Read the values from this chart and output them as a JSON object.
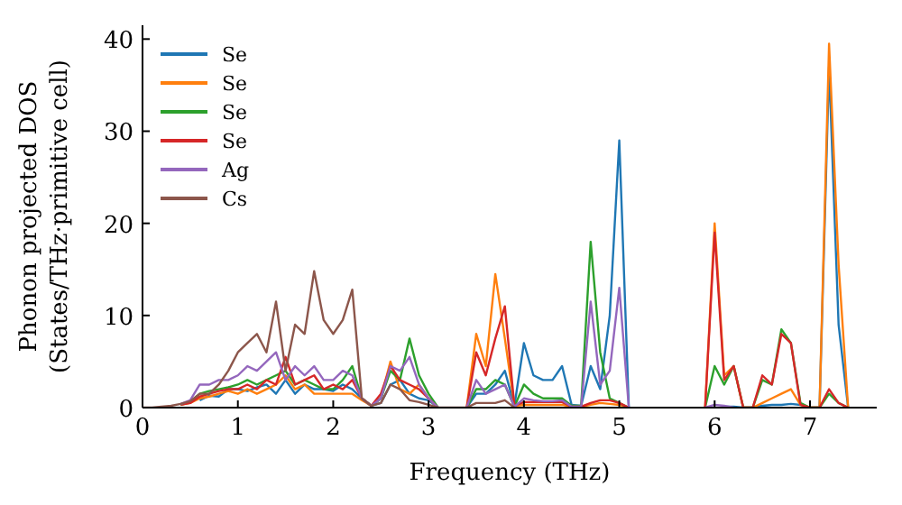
{
  "chart_data": {
    "type": "line",
    "xlabel": "Frequency (THz)",
    "ylabel": "Phonon projected DOS\n(States/THz·primitive cell)",
    "xlim": [
      0,
      7.7
    ],
    "xticks": [
      0,
      1,
      2,
      3,
      4,
      5,
      6,
      7
    ],
    "ylim": [
      0,
      41.5
    ],
    "yticks": [
      0,
      10,
      20,
      30,
      40
    ],
    "legend": "top left",
    "marker": "none",
    "line_style": "solid",
    "x": [
      0,
      0.1,
      0.2,
      0.3,
      0.4,
      0.5,
      0.6,
      0.7,
      0.8,
      0.9,
      1.0,
      1.1,
      1.2,
      1.3,
      1.4,
      1.5,
      1.6,
      1.7,
      1.8,
      1.9,
      2.0,
      2.1,
      2.2,
      2.3,
      2.4,
      2.5,
      2.6,
      2.7,
      2.8,
      2.9,
      3.0,
      3.1,
      3.2,
      3.3,
      3.4,
      3.5,
      3.6,
      3.7,
      3.8,
      3.9,
      4.0,
      4.1,
      4.2,
      4.3,
      4.4,
      4.5,
      4.6,
      4.7,
      4.8,
      4.9,
      5.0,
      5.1,
      5.2,
      5.3,
      5.4,
      5.5,
      5.6,
      5.7,
      5.8,
      5.9,
      6.0,
      6.1,
      6.2,
      6.3,
      6.4,
      6.5,
      6.6,
      6.7,
      6.8,
      6.9,
      7.0,
      7.1,
      7.2,
      7.3,
      7.4
    ],
    "series": [
      {
        "name": "Se",
        "color": "#1f77b4",
        "values": [
          null,
          null,
          null,
          null,
          null,
          null,
          0.8,
          1.3,
          1.2,
          2.0,
          2.0,
          1.8,
          2.2,
          2.5,
          1.5,
          3.0,
          1.5,
          2.5,
          2.0,
          2.0,
          1.8,
          2.5,
          2.0,
          1.0,
          0.2,
          0.5,
          2.5,
          3.0,
          1.5,
          1.0,
          0.8,
          0,
          null,
          null,
          0,
          1.5,
          1.5,
          2.5,
          4.0,
          0.2,
          7.0,
          3.5,
          3.0,
          3.0,
          4.5,
          0.3,
          0.2,
          4.5,
          2.0,
          10,
          29,
          0,
          null,
          null,
          null,
          null,
          null,
          null,
          null,
          null,
          null,
          0.1,
          0.1,
          0,
          0,
          0.2,
          0.3,
          0.3,
          0.4,
          0.3,
          0,
          0,
          37,
          9,
          0
        ]
      },
      {
        "name": "Se",
        "color": "#ff7f0e",
        "values": [
          null,
          null,
          null,
          null,
          0.3,
          0.5,
          1.0,
          1.2,
          1.5,
          1.8,
          1.5,
          2.0,
          1.5,
          2.0,
          2.5,
          3.5,
          2.0,
          2.5,
          1.5,
          1.5,
          1.5,
          1.5,
          1.5,
          0.8,
          0.2,
          1.0,
          5.0,
          2.0,
          1.5,
          2.5,
          1.0,
          0,
          null,
          null,
          0,
          8.0,
          4.5,
          14.5,
          7.5,
          0.2,
          0.3,
          0.3,
          0.3,
          0.3,
          0.3,
          0.1,
          0.1,
          0.3,
          0.5,
          0.4,
          0.3,
          0,
          null,
          null,
          null,
          null,
          null,
          null,
          null,
          0,
          20,
          3.5,
          4.5,
          0,
          0,
          0.5,
          1.0,
          1.5,
          2.0,
          0.3,
          0,
          0,
          39.5,
          15.5,
          0
        ]
      },
      {
        "name": "Se",
        "color": "#2ca02c",
        "values": [
          null,
          null,
          null,
          null,
          0.3,
          0.6,
          1.5,
          1.8,
          2.0,
          2.2,
          2.5,
          3.0,
          2.5,
          3.0,
          3.5,
          4.0,
          2.5,
          3.0,
          2.5,
          2.0,
          2.0,
          3.0,
          4.5,
          1.0,
          0.2,
          1.0,
          4.0,
          3.0,
          7.5,
          3.5,
          1.5,
          0,
          null,
          null,
          0,
          2.0,
          2.0,
          3.0,
          2.5,
          0.1,
          2.5,
          1.5,
          1.0,
          1.0,
          1.0,
          0.2,
          0.2,
          18,
          6,
          1,
          0.5,
          0,
          null,
          null,
          null,
          null,
          null,
          null,
          null,
          0,
          4.5,
          2.5,
          4.5,
          0,
          0,
          3.0,
          2.5,
          8.5,
          7.0,
          0.5,
          0,
          0,
          1.5,
          0.5,
          0
        ]
      },
      {
        "name": "Se",
        "color": "#d62728",
        "values": [
          null,
          null,
          null,
          null,
          0.3,
          0.5,
          1.2,
          1.5,
          1.8,
          2.0,
          2.0,
          2.5,
          2.0,
          3.0,
          2.5,
          5.5,
          2.5,
          3.0,
          3.5,
          2.0,
          2.5,
          2.0,
          3.0,
          1.0,
          0.2,
          1.5,
          4.5,
          3.0,
          2.5,
          2.0,
          1.0,
          0,
          null,
          null,
          0,
          6.0,
          3.5,
          7.5,
          11,
          0.2,
          0.6,
          0.6,
          0.6,
          0.6,
          0.6,
          0.1,
          0.1,
          0.5,
          0.8,
          0.8,
          0.5,
          0,
          null,
          null,
          null,
          null,
          null,
          null,
          null,
          0,
          19,
          3.0,
          4.5,
          0,
          0,
          3.5,
          2.5,
          8.0,
          7.0,
          0.3,
          0,
          0,
          2.0,
          0.5,
          0
        ]
      },
      {
        "name": "Ag",
        "color": "#9467bd",
        "values": [
          null,
          null,
          null,
          null,
          0.4,
          0.8,
          2.5,
          2.5,
          3.0,
          3.0,
          3.5,
          4.5,
          4.0,
          5.0,
          6.0,
          3.0,
          4.5,
          3.5,
          4.5,
          3.0,
          3.0,
          4.0,
          3.5,
          1.0,
          0.2,
          1.0,
          4.5,
          4.0,
          5.5,
          2.5,
          1.0,
          0,
          null,
          null,
          0,
          3.0,
          1.5,
          2.0,
          2.5,
          0.1,
          1.0,
          0.8,
          0.7,
          0.7,
          0.8,
          0.1,
          0.1,
          11.5,
          2.5,
          4,
          13,
          0,
          null,
          null,
          null,
          null,
          null,
          null,
          null,
          0,
          0.3,
          0.2,
          0,
          null,
          null,
          null,
          null,
          null,
          null,
          null,
          null,
          null,
          null,
          null,
          null
        ]
      },
      {
        "name": "Cs",
        "color": "#8c564b",
        "values": [
          0,
          0,
          0.1,
          0.2,
          0.4,
          0.7,
          1.5,
          1.5,
          2.5,
          4.0,
          6.0,
          7.0,
          8.0,
          6.0,
          11.5,
          4.0,
          9.0,
          8.0,
          14.8,
          9.5,
          8.0,
          9.5,
          12.8,
          1.0,
          0.2,
          0.5,
          2.5,
          2.0,
          0.8,
          0.6,
          0.3,
          0,
          0,
          0,
          0,
          0.5,
          0.5,
          0.5,
          0.8,
          0,
          null,
          null,
          null,
          null,
          null,
          null,
          null,
          null,
          null,
          null,
          null,
          null,
          null,
          null,
          null,
          null,
          null,
          null,
          null,
          null,
          null,
          null,
          null,
          null,
          null,
          null,
          null,
          null,
          null,
          null,
          null,
          null,
          null,
          null,
          null
        ]
      }
    ]
  }
}
